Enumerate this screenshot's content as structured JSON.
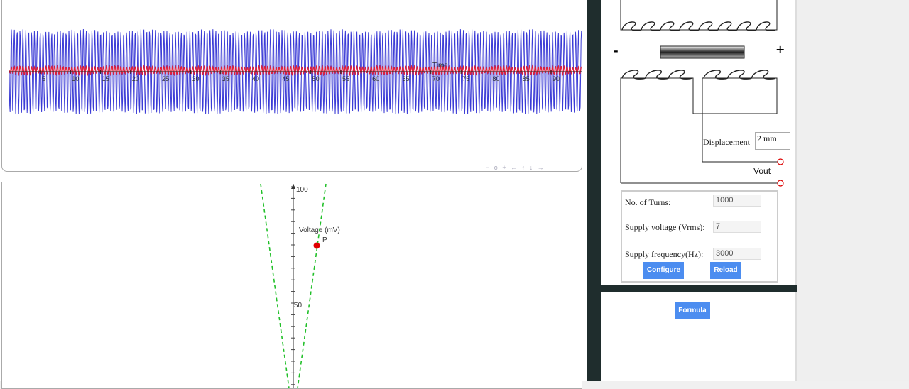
{
  "plot1": {
    "axis_label": "Time",
    "ticks": [
      "5",
      "10",
      "15",
      "20",
      "25",
      "30",
      "35",
      "40",
      "45",
      "50",
      "55",
      "60",
      "65",
      "70",
      "75",
      "80",
      "85",
      "90"
    ],
    "nav": [
      "−",
      "o",
      "+",
      "←",
      "↑",
      "↓",
      "→"
    ],
    "series": [
      {
        "name": "",
        "color": "#3b3bd6",
        "amplitude": 60
      },
      {
        "name": "",
        "color": "#e0203a",
        "amplitude": 6
      }
    ]
  },
  "plot2": {
    "y_ticks": [
      "100",
      "50"
    ],
    "axis_label": "Voltage (mV)",
    "point_label": "P",
    "point_color": "#e00000",
    "line_color": "#22c02a"
  },
  "sensor": {
    "minus": "-",
    "plus": "+",
    "displacement_label": "Displacement",
    "displacement_value": "2 mm",
    "vout_label": "Vout"
  },
  "config": {
    "turns_label": "No. of Turns:",
    "turns_value": "1000",
    "supply_voltage_label": "Supply voltage (Vrms):",
    "supply_voltage_value": "7",
    "supply_freq_label": "Supply frequency(Hz):",
    "supply_freq_value": "3000",
    "configure_label": "Configure",
    "reload_label": "Reload"
  },
  "formula_label": "Formula"
}
